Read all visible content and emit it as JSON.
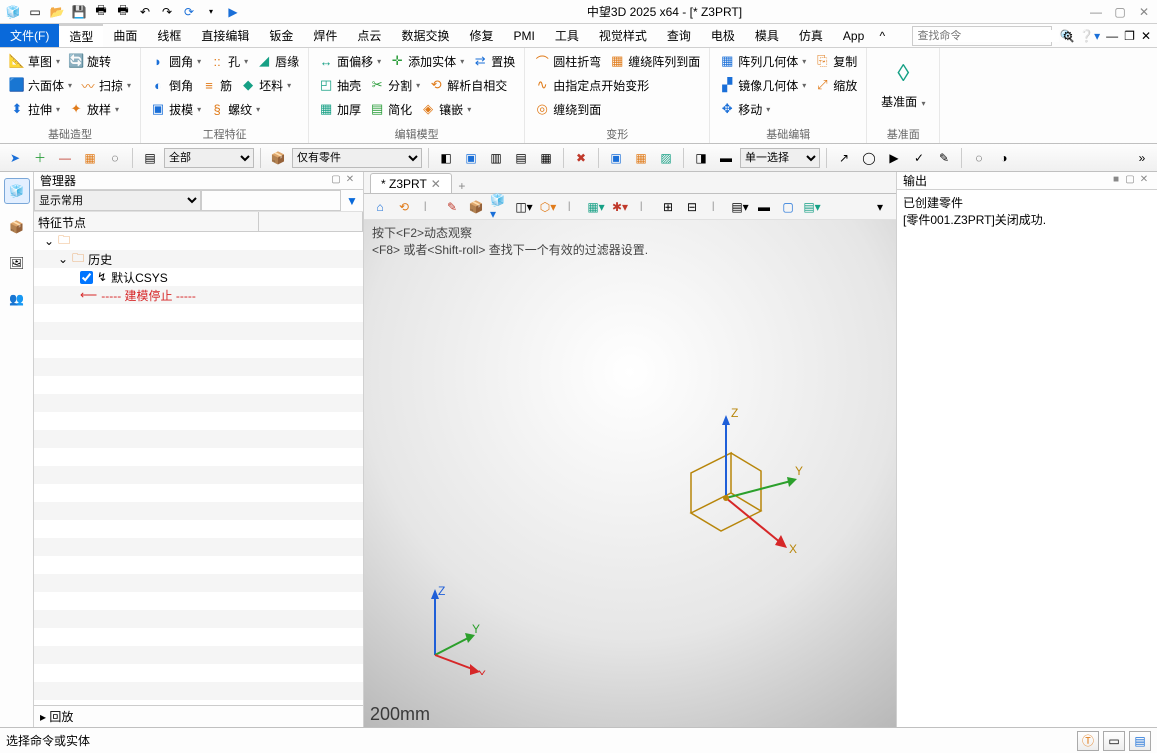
{
  "app": {
    "title": "中望3D 2025 x64 - [*  Z3PRT]"
  },
  "qat_icons": [
    "app",
    "new",
    "open",
    "save",
    "print",
    "print2",
    "undo",
    "redo",
    "refresh",
    "dd",
    "play"
  ],
  "tabs": {
    "file": "文件(F)",
    "list": [
      "造型",
      "曲面",
      "线框",
      "直接编辑",
      "钣金",
      "焊件",
      "点云",
      "数据交换",
      "修复",
      "PMI",
      "工具",
      "视觉样式",
      "查询",
      "电极",
      "模具",
      "仿真",
      "App"
    ],
    "active": "造型"
  },
  "search_placeholder": "查找命令",
  "ribbon": {
    "groups": [
      {
        "title": "基础造型",
        "cols": [
          [
            {
              "icon": "📐",
              "color": "ic-blue",
              "label": "草图",
              "dd": true
            },
            {
              "icon": "🔄",
              "color": "ic-orange",
              "label": "旋转"
            }
          ],
          [
            {
              "icon": "🟦",
              "color": "ic-blue",
              "label": "六面体",
              "dd": true
            },
            {
              "icon": "〰",
              "color": "ic-orange",
              "label": "扫掠",
              "dd": true
            }
          ],
          [
            {
              "icon": "⬍",
              "color": "ic-blue",
              "label": "拉伸",
              "dd": true
            },
            {
              "icon": "✦",
              "color": "ic-orange",
              "label": "放样",
              "dd": true
            }
          ]
        ]
      },
      {
        "title": "工程特征",
        "cols": [
          [
            {
              "icon": "◗",
              "color": "ic-blue",
              "label": "圆角",
              "dd": true
            },
            {
              "icon": "::",
              "color": "ic-orange",
              "label": "孔",
              "dd": true
            },
            {
              "icon": "◢",
              "color": "ic-teal",
              "label": "唇缘"
            }
          ],
          [
            {
              "icon": "◐",
              "color": "ic-blue",
              "label": "倒角"
            },
            {
              "icon": "≡",
              "color": "ic-orange",
              "label": "筋"
            },
            {
              "icon": "◆",
              "color": "ic-teal",
              "label": "坯料",
              "dd": true
            }
          ],
          [
            {
              "icon": "▣",
              "color": "ic-blue",
              "label": "拔模",
              "dd": true
            },
            {
              "icon": "§",
              "color": "ic-orange",
              "label": "螺纹",
              "dd": true
            }
          ]
        ]
      },
      {
        "title": "编辑模型",
        "cols": [
          [
            {
              "icon": "↔",
              "color": "ic-teal",
              "label": "面偏移",
              "dd": true
            },
            {
              "icon": "✛",
              "color": "ic-green",
              "label": "添加实体",
              "dd": true
            },
            {
              "icon": "⇄",
              "color": "ic-blue",
              "label": "置换"
            }
          ],
          [
            {
              "icon": "◰",
              "color": "ic-teal",
              "label": "抽壳"
            },
            {
              "icon": "✂",
              "color": "ic-green",
              "label": "分割",
              "dd": true
            },
            {
              "icon": "⟲",
              "color": "ic-orange",
              "label": "解析自相交"
            }
          ],
          [
            {
              "icon": "▦",
              "color": "ic-teal",
              "label": "加厚"
            },
            {
              "icon": "▤",
              "color": "ic-green",
              "label": "简化"
            },
            {
              "icon": "◈",
              "color": "ic-orange",
              "label": "镶嵌",
              "dd": true
            }
          ]
        ]
      },
      {
        "title": "变形",
        "cols": [
          [
            {
              "icon": "⌒",
              "color": "ic-orange",
              "label": "圆柱折弯"
            },
            {
              "icon": "▦",
              "color": "ic-orange",
              "label": "缠绕阵列到面"
            }
          ],
          [
            {
              "icon": "∿",
              "color": "ic-orange",
              "label": "由指定点开始变形"
            }
          ],
          [
            {
              "icon": "◎",
              "color": "ic-orange",
              "label": "缠绕到面"
            }
          ]
        ]
      },
      {
        "title": "基础编辑",
        "cols": [
          [
            {
              "icon": "▦",
              "color": "ic-blue",
              "label": "阵列几何体",
              "dd": true
            },
            {
              "icon": "⎘",
              "color": "ic-orange",
              "label": "复制"
            }
          ],
          [
            {
              "icon": "▞",
              "color": "ic-blue",
              "label": "镜像几何体",
              "dd": true
            },
            {
              "icon": "⤢",
              "color": "ic-orange",
              "label": "缩放"
            }
          ],
          [
            {
              "icon": "✥",
              "color": "ic-blue",
              "label": "移动",
              "dd": true
            }
          ]
        ]
      },
      {
        "title": "基准面",
        "large": true,
        "cols": [
          [
            {
              "icon": "◊",
              "color": "ic-teal",
              "label": "基准面",
              "dd": true
            }
          ]
        ]
      }
    ]
  },
  "toolbar2": {
    "selectA": "全部",
    "selectB": "仅有零件",
    "selectC": "单一选择"
  },
  "manager": {
    "title": "管理器",
    "display_dropdown": "显示常用",
    "col1": "特征节点",
    "tree": {
      "root_icon": "🗀",
      "history": "历史",
      "csys": "默认CSYS",
      "stop": "----- 建模停止 -----"
    },
    "replay": "回放"
  },
  "document_tab": "*   Z3PRT",
  "viewport": {
    "hint1": "按下<F2>动态观察",
    "hint2": "<F8> 或者<Shift-roll> 查找下一个有效的过滤器设置.",
    "scale": "200mm",
    "axes": {
      "x": "X",
      "y": "Y",
      "z": "Z"
    }
  },
  "output": {
    "title": "输出",
    "lines": [
      "已创建零件",
      "[零件001.Z3PRT]关闭成功."
    ]
  },
  "status": {
    "text": "选择命令或实体"
  },
  "colors": {
    "x_axis": "#d62728",
    "y_axis": "#2ca02c",
    "z_axis": "#1f5fd8",
    "wire": "#b8860b"
  }
}
